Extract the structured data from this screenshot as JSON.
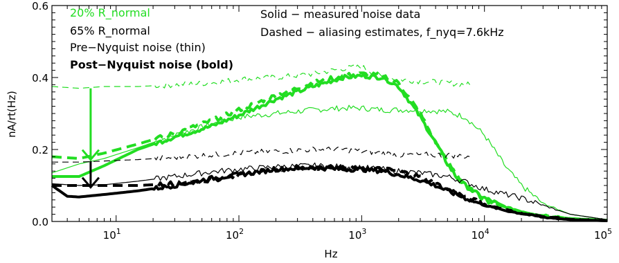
{
  "chart_data": {
    "type": "line",
    "xscale": "log",
    "xlim": [
      3,
      100000
    ],
    "ylim": [
      0.0,
      0.6
    ],
    "xlabel": "Hz",
    "ylabel": "nA/rt(Hz)",
    "y_ticks": [
      "0.0",
      "0.2",
      "0.4",
      "0.6"
    ],
    "x_ticks": [
      {
        "base": "10",
        "exp": "1",
        "value": 10
      },
      {
        "base": "10",
        "exp": "2",
        "value": 100
      },
      {
        "base": "10",
        "exp": "3",
        "value": 1000
      },
      {
        "base": "10",
        "exp": "4",
        "value": 10000
      },
      {
        "base": "10",
        "exp": "5",
        "value": 100000
      }
    ],
    "legend_left": [
      {
        "text": "20% R_normal",
        "color": "#22dd22",
        "bold": false
      },
      {
        "text": "65% R_normal",
        "color": "#000000",
        "bold": false
      },
      {
        "text": "Pre−Nyquist noise (thin)",
        "color": "#000000",
        "bold": false
      },
      {
        "text": "Post−Nyquist noise (bold)",
        "color": "#000000",
        "bold": true
      }
    ],
    "legend_right": [
      "Solid − measured noise data",
      "Dashed − aliasing estimates, f_nyq=7.6kHz"
    ],
    "colors": {
      "green": "#22dd22",
      "black": "#000000"
    },
    "arrows": [
      {
        "color": "green",
        "x": 6.2,
        "y_from": 0.37,
        "y_to": 0.172
      },
      {
        "color": "black",
        "x": 6.2,
        "y_from": 0.168,
        "y_to": 0.095
      }
    ],
    "series": [
      {
        "name": "20% R_normal pre-Nyquist measured (thin)",
        "color": "green",
        "style": "solid",
        "weight": "thin",
        "x": [
          3,
          5,
          8,
          15,
          30,
          60,
          100,
          200,
          400,
          700,
          1000,
          1500,
          2000,
          3000,
          5000,
          7000,
          10000,
          15000,
          20000,
          30000,
          50000,
          100000
        ],
        "y": [
          0.135,
          0.16,
          0.175,
          0.205,
          0.24,
          0.27,
          0.29,
          0.3,
          0.31,
          0.315,
          0.315,
          0.31,
          0.31,
          0.31,
          0.305,
          0.29,
          0.24,
          0.15,
          0.1,
          0.05,
          0.02,
          0.005
        ]
      },
      {
        "name": "20% R_normal pre-Nyquist aliasing estimate (thin)",
        "color": "green",
        "style": "dashed",
        "weight": "thin",
        "x": [
          3,
          5,
          8,
          15,
          30,
          60,
          100,
          200,
          400,
          700,
          1000,
          1500,
          2000,
          3000,
          5000,
          7600
        ],
        "y": [
          0.375,
          0.37,
          0.375,
          0.375,
          0.38,
          0.385,
          0.395,
          0.4,
          0.41,
          0.425,
          0.43,
          0.4,
          0.395,
          0.39,
          0.385,
          0.38
        ]
      },
      {
        "name": "20% R_normal post-Nyquist measured (bold)",
        "color": "green",
        "style": "solid",
        "weight": "bold",
        "x": [
          3,
          5,
          8,
          15,
          30,
          60,
          100,
          200,
          400,
          700,
          1000,
          1500,
          2000,
          2500,
          3000,
          4000,
          5000,
          6000,
          7000,
          8000,
          10000,
          15000,
          20000,
          30000,
          50000,
          100000
        ],
        "y": [
          0.125,
          0.125,
          0.155,
          0.2,
          0.235,
          0.265,
          0.295,
          0.34,
          0.375,
          0.4,
          0.405,
          0.4,
          0.375,
          0.33,
          0.29,
          0.22,
          0.16,
          0.12,
          0.1,
          0.085,
          0.065,
          0.04,
          0.028,
          0.015,
          0.008,
          0.003
        ]
      },
      {
        "name": "20% R_normal post-Nyquist aliasing estimate (bold)",
        "color": "green",
        "style": "dashed",
        "weight": "bold",
        "x": [
          3,
          5,
          8,
          15,
          30,
          60,
          100,
          200,
          400,
          700,
          1000,
          1500,
          2000,
          3000,
          4000,
          5000,
          7000,
          10000,
          20000,
          50000,
          100000
        ],
        "y": [
          0.18,
          0.175,
          0.19,
          0.215,
          0.245,
          0.28,
          0.31,
          0.35,
          0.385,
          0.405,
          0.41,
          0.405,
          0.385,
          0.3,
          0.22,
          0.165,
          0.1,
          0.06,
          0.025,
          0.008,
          0.003
        ]
      },
      {
        "name": "65% R_normal pre-Nyquist measured (thin)",
        "color": "black",
        "style": "solid",
        "weight": "thin",
        "x": [
          3,
          5,
          8,
          15,
          30,
          60,
          100,
          200,
          400,
          700,
          1000,
          1500,
          2000,
          3000,
          5000,
          7000,
          10000,
          15000,
          20000,
          30000,
          50000,
          100000
        ],
        "y": [
          0.105,
          0.1,
          0.102,
          0.112,
          0.125,
          0.138,
          0.145,
          0.152,
          0.155,
          0.152,
          0.15,
          0.145,
          0.14,
          0.135,
          0.125,
          0.11,
          0.09,
          0.075,
          0.065,
          0.045,
          0.02,
          0.005
        ]
      },
      {
        "name": "65% R_normal pre-Nyquist aliasing estimate (thin)",
        "color": "black",
        "style": "dashed",
        "weight": "thin",
        "x": [
          3,
          5,
          8,
          15,
          30,
          60,
          100,
          200,
          400,
          700,
          1000,
          1500,
          2000,
          3000,
          5000,
          7600
        ],
        "y": [
          0.165,
          0.165,
          0.168,
          0.172,
          0.178,
          0.185,
          0.19,
          0.195,
          0.2,
          0.2,
          0.195,
          0.19,
          0.185,
          0.185,
          0.185,
          0.18
        ]
      },
      {
        "name": "65% R_normal post-Nyquist measured (bold)",
        "color": "black",
        "style": "solid",
        "weight": "bold",
        "x": [
          3,
          4,
          5,
          8,
          15,
          30,
          60,
          100,
          200,
          400,
          700,
          1000,
          1500,
          2000,
          3000,
          4000,
          5000,
          7000,
          10000,
          15000,
          20000,
          30000,
          50000,
          100000
        ],
        "y": [
          0.1,
          0.07,
          0.068,
          0.075,
          0.085,
          0.1,
          0.12,
          0.13,
          0.145,
          0.15,
          0.145,
          0.145,
          0.14,
          0.13,
          0.115,
          0.1,
          0.085,
          0.065,
          0.045,
          0.03,
          0.022,
          0.012,
          0.005,
          0.002
        ]
      },
      {
        "name": "65% R_normal post-Nyquist aliasing estimate (bold)",
        "color": "black",
        "style": "dashed",
        "weight": "bold",
        "x": [
          3,
          5,
          8,
          15,
          30,
          60,
          100,
          200,
          400,
          700,
          1000,
          1500,
          2000,
          3000,
          4000,
          5000,
          7000,
          10000,
          20000,
          50000,
          100000
        ],
        "y": [
          0.1,
          0.1,
          0.1,
          0.1,
          0.105,
          0.115,
          0.13,
          0.145,
          0.15,
          0.15,
          0.148,
          0.145,
          0.14,
          0.125,
          0.105,
          0.09,
          0.068,
          0.048,
          0.022,
          0.006,
          0.002
        ]
      }
    ]
  }
}
